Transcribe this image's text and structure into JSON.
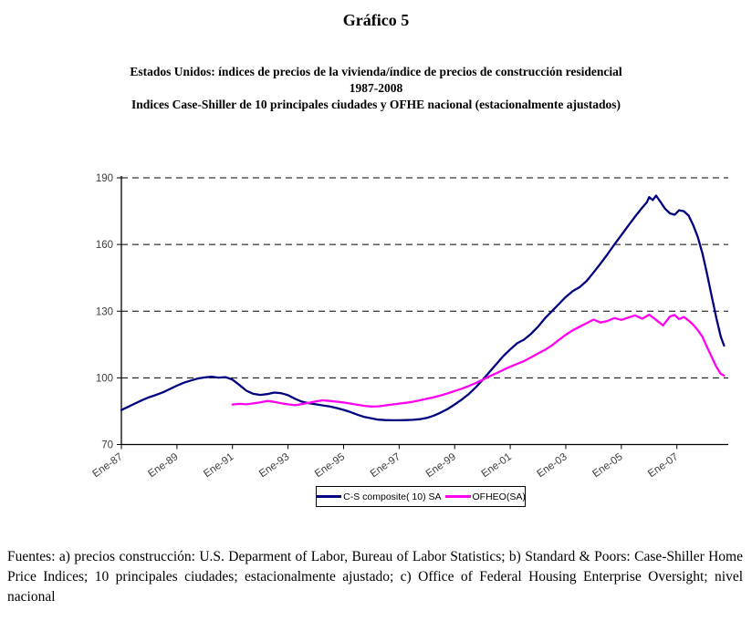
{
  "figure_label": "Gráfico 5",
  "subtitle": {
    "line1": "Estados Unidos: índices de precios de la vivienda/índice de precios de construcción residencial",
    "line2": "1987-2008",
    "line3": "Indices Case-Shiller de 10 principales ciudades y OFHE nacional (estacionalmente ajustados)"
  },
  "footer": {
    "text": "Fuentes: a) precios construcción: U.S. Deparment of Labor,  Bureau of Labor Statistics; b) Standard & Poors: Case-Shiller Home Price Indices; 10 principales ciudades; estacionalmente ajustado; c) Office of Federal Housing Enterprise Oversight; nivel nacional"
  },
  "chart_data": {
    "type": "line",
    "title": "Estados Unidos: índices de precios de la vivienda/índice de precios de construcción residencial, 1987-2008",
    "xlabel": "",
    "ylabel": "",
    "ylim": [
      70,
      190
    ],
    "xlim": [
      1987,
      2008.85
    ],
    "yticks": [
      70,
      100,
      130,
      160,
      190
    ],
    "grid": "horizontal-dashed",
    "legend_position": "bottom-center",
    "axis_color": "#000000",
    "tick_label_color": "#3d3d3d",
    "xticks": [
      {
        "x": 1987,
        "label": "Ene-87"
      },
      {
        "x": 1989,
        "label": "Ene-89"
      },
      {
        "x": 1991,
        "label": "Ene-91"
      },
      {
        "x": 1993,
        "label": "Ene-93"
      },
      {
        "x": 1995,
        "label": "Ene-95"
      },
      {
        "x": 1997,
        "label": "Ene-97"
      },
      {
        "x": 1999,
        "label": "Ene-99"
      },
      {
        "x": 2001,
        "label": "Ene-01"
      },
      {
        "x": 2003,
        "label": "Ene-03"
      },
      {
        "x": 2005,
        "label": "Ene-05"
      },
      {
        "x": 2007,
        "label": "Ene-07"
      }
    ],
    "series": [
      {
        "name": "C-S composite( 10) SA",
        "color": "#000080",
        "points": [
          [
            1987,
            85.5
          ],
          [
            1987.25,
            87
          ],
          [
            1987.5,
            88.5
          ],
          [
            1987.75,
            90
          ],
          [
            1988,
            91.3
          ],
          [
            1988.25,
            92.3
          ],
          [
            1988.5,
            93.5
          ],
          [
            1988.75,
            95
          ],
          [
            1989,
            96.5
          ],
          [
            1989.25,
            97.8
          ],
          [
            1989.5,
            98.8
          ],
          [
            1989.75,
            99.7
          ],
          [
            1990,
            100.2
          ],
          [
            1990.25,
            100.5
          ],
          [
            1990.5,
            100.1
          ],
          [
            1990.75,
            100.3
          ],
          [
            1991,
            99.2
          ],
          [
            1991.25,
            96.8
          ],
          [
            1991.5,
            94.2
          ],
          [
            1991.75,
            92.8
          ],
          [
            1992,
            92.3
          ],
          [
            1992.25,
            92.7
          ],
          [
            1992.5,
            93.4
          ],
          [
            1992.75,
            93.1
          ],
          [
            1993,
            92.2
          ],
          [
            1993.25,
            90.6
          ],
          [
            1993.5,
            89.3
          ],
          [
            1993.75,
            88.6
          ],
          [
            1994,
            88.1
          ],
          [
            1994.25,
            87.6
          ],
          [
            1994.5,
            87.1
          ],
          [
            1994.75,
            86.4
          ],
          [
            1995,
            85.6
          ],
          [
            1995.25,
            84.6
          ],
          [
            1995.5,
            83.4
          ],
          [
            1995.75,
            82.4
          ],
          [
            1996,
            81.8
          ],
          [
            1996.25,
            81.2
          ],
          [
            1996.5,
            81
          ],
          [
            1996.75,
            80.9
          ],
          [
            1997,
            80.9
          ],
          [
            1997.25,
            81
          ],
          [
            1997.5,
            81.1
          ],
          [
            1997.75,
            81.4
          ],
          [
            1998,
            82
          ],
          [
            1998.25,
            83
          ],
          [
            1998.5,
            84.4
          ],
          [
            1998.75,
            86
          ],
          [
            1999,
            88
          ],
          [
            1999.25,
            90.2
          ],
          [
            1999.5,
            92.6
          ],
          [
            1999.75,
            95.6
          ],
          [
            2000,
            99
          ],
          [
            2000.25,
            102.6
          ],
          [
            2000.5,
            106.2
          ],
          [
            2000.75,
            109.8
          ],
          [
            2001,
            112.8
          ],
          [
            2001.25,
            115.6
          ],
          [
            2001.5,
            117.2
          ],
          [
            2001.75,
            119.8
          ],
          [
            2002,
            123
          ],
          [
            2002.25,
            126.8
          ],
          [
            2002.5,
            130
          ],
          [
            2002.75,
            133.2
          ],
          [
            2003,
            136.4
          ],
          [
            2003.25,
            139
          ],
          [
            2003.5,
            140.8
          ],
          [
            2003.75,
            143.6
          ],
          [
            2004,
            147.4
          ],
          [
            2004.25,
            151.4
          ],
          [
            2004.5,
            155.6
          ],
          [
            2004.75,
            160
          ],
          [
            2005,
            164.2
          ],
          [
            2005.25,
            168.4
          ],
          [
            2005.5,
            172.6
          ],
          [
            2005.75,
            176.6
          ],
          [
            2005.92,
            179
          ],
          [
            2006,
            181.3
          ],
          [
            2006.13,
            180
          ],
          [
            2006.25,
            182
          ],
          [
            2006.42,
            179
          ],
          [
            2006.58,
            176
          ],
          [
            2006.75,
            174
          ],
          [
            2006.92,
            173.4
          ],
          [
            2007.08,
            175.4
          ],
          [
            2007.25,
            175
          ],
          [
            2007.42,
            173
          ],
          [
            2007.58,
            169
          ],
          [
            2007.75,
            163.5
          ],
          [
            2007.92,
            156
          ],
          [
            2008.08,
            147
          ],
          [
            2008.25,
            137
          ],
          [
            2008.42,
            127
          ],
          [
            2008.58,
            118.5
          ],
          [
            2008.7,
            114.5
          ]
        ]
      },
      {
        "name": "OFHEO(SA)",
        "color": "#FF00F0",
        "points": [
          [
            1991,
            88
          ],
          [
            1991.25,
            88.3
          ],
          [
            1991.5,
            88.1
          ],
          [
            1991.75,
            88.5
          ],
          [
            1992,
            89
          ],
          [
            1992.25,
            89.6
          ],
          [
            1992.5,
            89.2
          ],
          [
            1992.75,
            88.6
          ],
          [
            1993,
            88.1
          ],
          [
            1993.25,
            87.7
          ],
          [
            1993.5,
            88.2
          ],
          [
            1993.75,
            88.8
          ],
          [
            1994,
            89.4
          ],
          [
            1994.25,
            89.9
          ],
          [
            1994.5,
            89.6
          ],
          [
            1994.75,
            89.3
          ],
          [
            1995,
            88.9
          ],
          [
            1995.25,
            88.4
          ],
          [
            1995.5,
            87.9
          ],
          [
            1995.75,
            87.4
          ],
          [
            1996,
            87.1
          ],
          [
            1996.25,
            87.2
          ],
          [
            1996.5,
            87.6
          ],
          [
            1996.75,
            88
          ],
          [
            1997,
            88.4
          ],
          [
            1997.25,
            88.8
          ],
          [
            1997.5,
            89.3
          ],
          [
            1997.75,
            89.9
          ],
          [
            1998,
            90.6
          ],
          [
            1998.25,
            91.3
          ],
          [
            1998.5,
            92.1
          ],
          [
            1998.75,
            93
          ],
          [
            1999,
            94.1
          ],
          [
            1999.25,
            95.1
          ],
          [
            1999.5,
            96.3
          ],
          [
            1999.75,
            97.6
          ],
          [
            2000,
            99.1
          ],
          [
            2000.25,
            100.7
          ],
          [
            2000.5,
            102.1
          ],
          [
            2000.75,
            103.6
          ],
          [
            2001,
            105
          ],
          [
            2001.25,
            106.3
          ],
          [
            2001.5,
            107.6
          ],
          [
            2001.75,
            109.2
          ],
          [
            2002,
            111
          ],
          [
            2002.25,
            112.6
          ],
          [
            2002.5,
            114.6
          ],
          [
            2002.75,
            117
          ],
          [
            2003,
            119.4
          ],
          [
            2003.25,
            121.4
          ],
          [
            2003.5,
            123
          ],
          [
            2003.75,
            124.6
          ],
          [
            2004,
            126.2
          ],
          [
            2004.25,
            124.9
          ],
          [
            2004.5,
            125.6
          ],
          [
            2004.75,
            126.9
          ],
          [
            2005,
            126.1
          ],
          [
            2005.25,
            127.1
          ],
          [
            2005.5,
            128.1
          ],
          [
            2005.75,
            126.6
          ],
          [
            2006,
            128.4
          ],
          [
            2006.25,
            126.1
          ],
          [
            2006.5,
            123.6
          ],
          [
            2006.75,
            127.6
          ],
          [
            2006.92,
            128.3
          ],
          [
            2007.08,
            126.4
          ],
          [
            2007.25,
            127.4
          ],
          [
            2007.42,
            125.8
          ],
          [
            2007.58,
            124
          ],
          [
            2007.75,
            121.5
          ],
          [
            2007.92,
            118.5
          ],
          [
            2008.08,
            114
          ],
          [
            2008.25,
            109.5
          ],
          [
            2008.42,
            105
          ],
          [
            2008.58,
            101.8
          ],
          [
            2008.7,
            101
          ]
        ]
      }
    ]
  }
}
